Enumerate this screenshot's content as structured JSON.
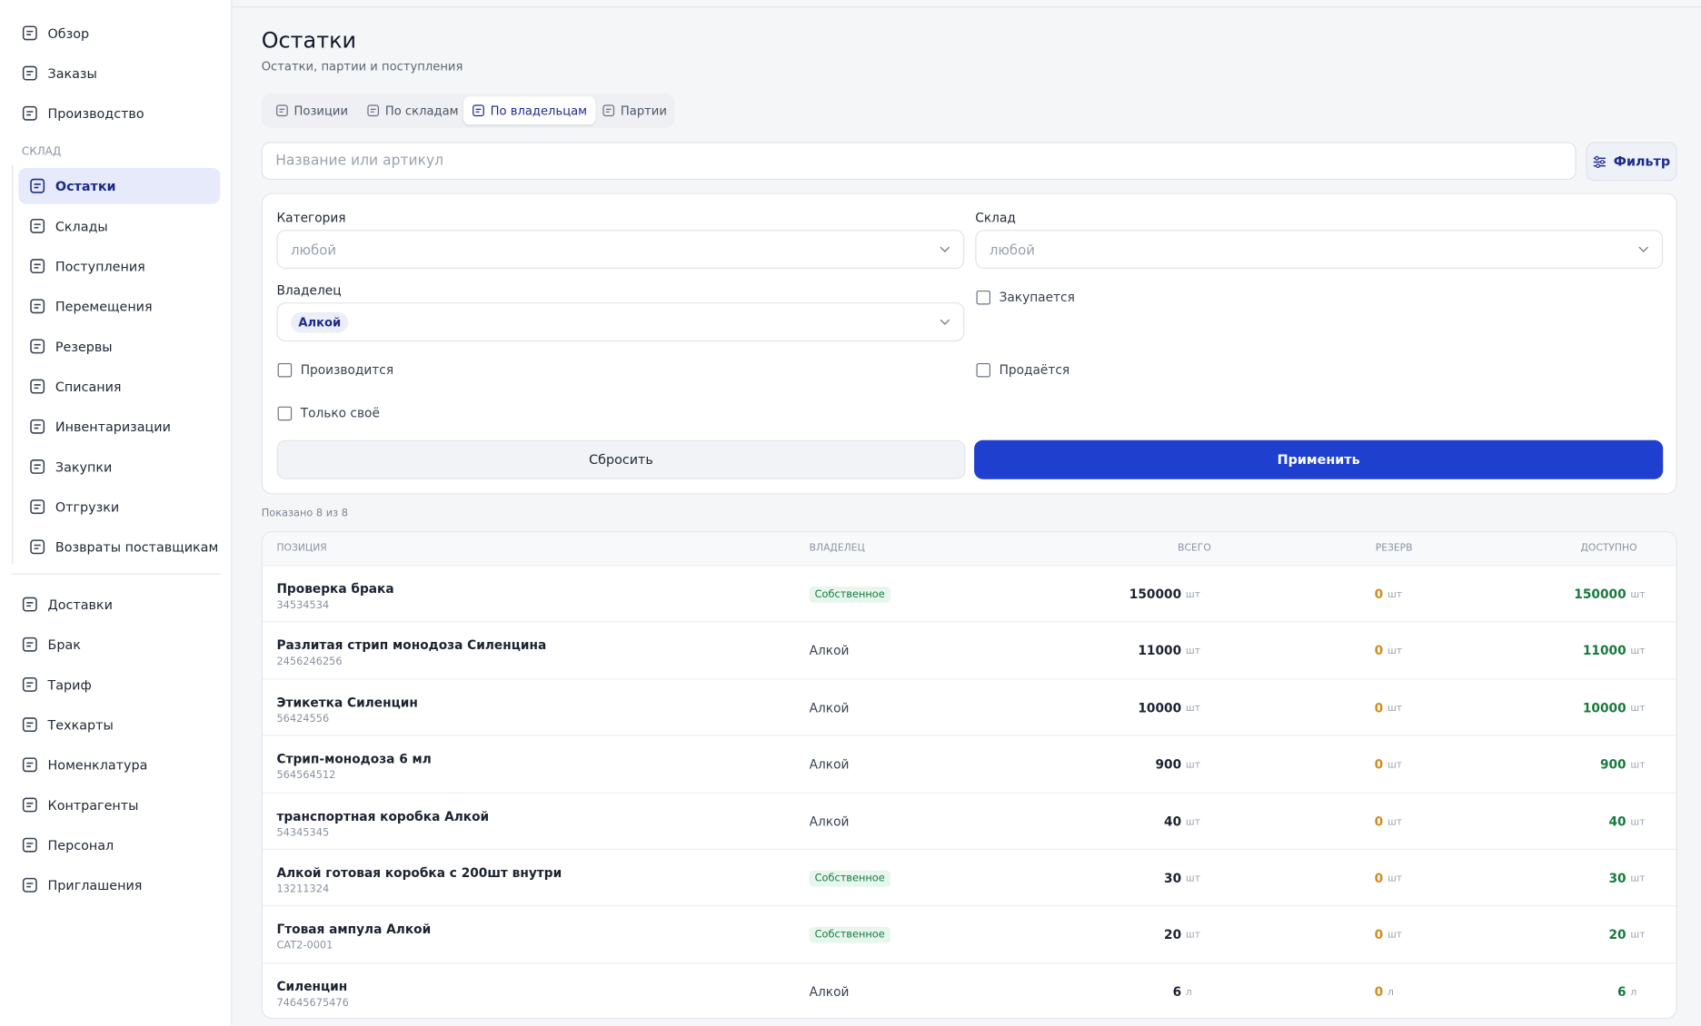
{
  "sidebar": {
    "top": [
      "Обзор",
      "Заказы",
      "Производство"
    ],
    "section": "СКЛАД",
    "warehouse": [
      "Остатки",
      "Склады",
      "Поступления",
      "Перемещения",
      "Резервы",
      "Списания",
      "Инвентаризации",
      "Закупки",
      "Отгрузки",
      "Возвраты поставщикам"
    ],
    "bottom": [
      "Доставки",
      "Брак",
      "Тариф",
      "Техкарты",
      "Номенклатура",
      "Контрагенты",
      "Персонал",
      "Приглашения"
    ]
  },
  "header": {
    "title": "Остатки",
    "subtitle": "Остатки, партии и поступления"
  },
  "tabs": [
    "Позиции",
    "По складам",
    "По владельцам",
    "Партии"
  ],
  "search": {
    "placeholder": "Название или артикул",
    "filter_button": "Фильтр"
  },
  "filters": {
    "category_label": "Категория",
    "category_value": "любой",
    "warehouse_label": "Склад",
    "warehouse_value": "любой",
    "owner_label": "Владелец",
    "owner_value": "Алкой",
    "checkboxes": [
      "Закупается",
      "Производится",
      "Продаётся",
      "Только своё"
    ],
    "reset": "Сбросить",
    "apply": "Применить"
  },
  "shown": "Показано 8 из 8",
  "table": {
    "headers": [
      "ПОЗИЦИЯ",
      "ВЛАДЕЛЕЦ",
      "ВСЕГО",
      "РЕЗЕРВ",
      "ДОСТУПНО"
    ],
    "rows": [
      {
        "name": "Проверка брака",
        "code": "34534534",
        "owner": "Собственное",
        "own": true,
        "total": 150000,
        "reserve": 0,
        "available": 150000,
        "unit": "шт"
      },
      {
        "name": "Разлитая стрип монодоза Силенцина",
        "code": "2456246256",
        "owner": "Алкой",
        "own": false,
        "total": 11000,
        "reserve": 0,
        "available": 11000,
        "unit": "шт"
      },
      {
        "name": "Этикетка Силенцин",
        "code": "56424556",
        "owner": "Алкой",
        "own": false,
        "total": 10000,
        "reserve": 0,
        "available": 10000,
        "unit": "шт"
      },
      {
        "name": "Стрип-монодоза 6 мл",
        "code": "564564512",
        "owner": "Алкой",
        "own": false,
        "total": 900,
        "reserve": 0,
        "available": 900,
        "unit": "шт"
      },
      {
        "name": "транспортная коробка Алкой",
        "code": "54345345",
        "owner": "Алкой",
        "own": false,
        "total": 40,
        "reserve": 0,
        "available": 40,
        "unit": "шт"
      },
      {
        "name": "Алкой готовая коробка с 200шт внутри",
        "code": "13211324",
        "owner": "Собственное",
        "own": true,
        "total": 30,
        "reserve": 0,
        "available": 30,
        "unit": "шт"
      },
      {
        "name": "Гтовая ампула Алкой",
        "code": "CAT2-0001",
        "owner": "Собственное",
        "own": true,
        "total": 20,
        "reserve": 0,
        "available": 20,
        "unit": "шт"
      },
      {
        "name": "Силенцин",
        "code": "74645675476",
        "owner": "Алкой",
        "own": false,
        "total": 6,
        "reserve": 0,
        "available": 6,
        "unit": "л"
      }
    ]
  }
}
